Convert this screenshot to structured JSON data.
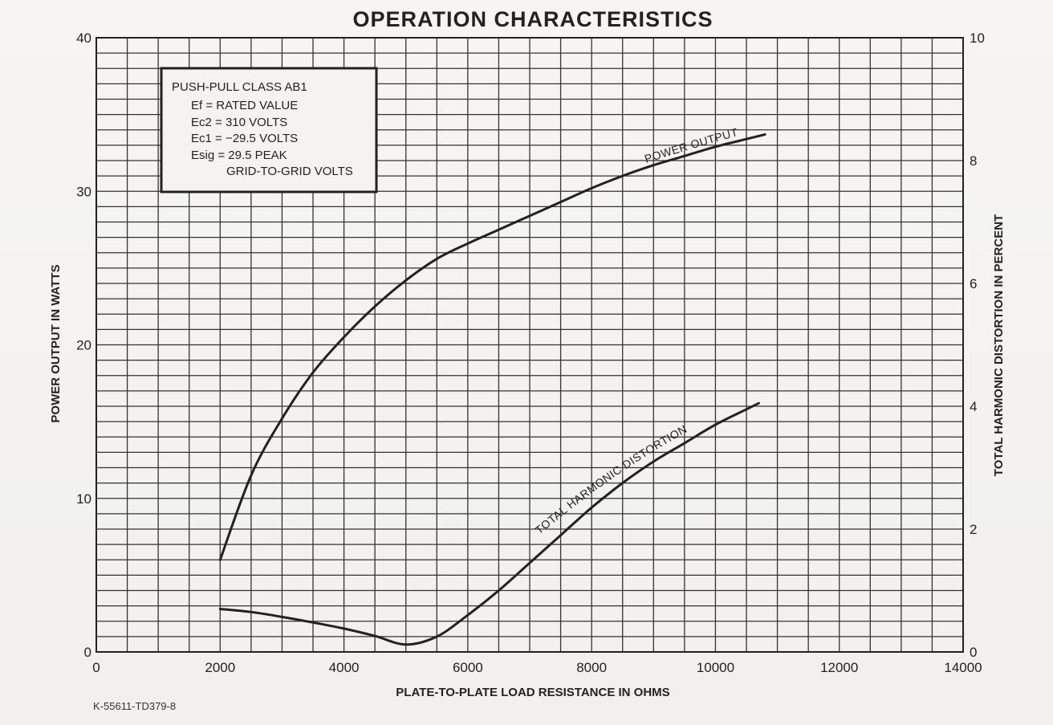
{
  "chart_data": {
    "type": "line",
    "title": "OPERATION CHARACTERISTICS",
    "xlabel": "PLATE-TO-PLATE LOAD RESISTANCE IN OHMS",
    "ylabel": "POWER OUTPUT IN WATTS",
    "y2label": "TOTAL HARMONIC DISTORTION IN PERCENT",
    "xlim": [
      0,
      14000
    ],
    "ylim": [
      0,
      40
    ],
    "y2lim": [
      0,
      10
    ],
    "x_ticks": [
      "0",
      "2000",
      "4000",
      "6000",
      "8000",
      "10000",
      "12000",
      "14000"
    ],
    "y_ticks": [
      "0",
      "10",
      "20",
      "30",
      "40"
    ],
    "y2_ticks": [
      "0",
      "2",
      "4",
      "6",
      "8",
      "10"
    ],
    "grid": true,
    "series": [
      {
        "name": "POWER OUTPUT",
        "axis": "left",
        "x": [
          2000,
          2500,
          3000,
          3500,
          4000,
          4500,
          5000,
          5500,
          6000,
          6500,
          7000,
          7500,
          8000,
          8500,
          9000,
          9500,
          10000,
          10500,
          10800
        ],
        "y": [
          6,
          11.5,
          15.2,
          18.2,
          20.5,
          22.5,
          24.2,
          25.6,
          26.6,
          27.5,
          28.4,
          29.3,
          30.2,
          31.0,
          31.7,
          32.3,
          32.9,
          33.4,
          33.7
        ]
      },
      {
        "name": "TOTAL HARMONIC DISTORTION",
        "axis": "right",
        "x": [
          2000,
          2500,
          3000,
          3500,
          4000,
          4500,
          5000,
          5500,
          6000,
          6500,
          7000,
          7500,
          8000,
          8500,
          9000,
          9500,
          10000,
          10500,
          10700
        ],
        "y": [
          0.7,
          0.65,
          0.57,
          0.48,
          0.38,
          0.26,
          0.12,
          0.25,
          0.6,
          1.0,
          1.45,
          1.9,
          2.35,
          2.75,
          3.1,
          3.4,
          3.7,
          3.95,
          4.05
        ]
      }
    ]
  },
  "legend_box": {
    "lines": [
      "PUSH-PULL CLASS AB1",
      "Ef = RATED VALUE",
      "Ec2 = 310 VOLTS",
      "Ec1 = −29.5 VOLTS",
      "Esig = 29.5 PEAK",
      "GRID-TO-GRID VOLTS"
    ]
  },
  "footer_code": "K-55611-TD379-8",
  "colors": {
    "ink": "#222222",
    "paper": "#f4f3f0"
  }
}
